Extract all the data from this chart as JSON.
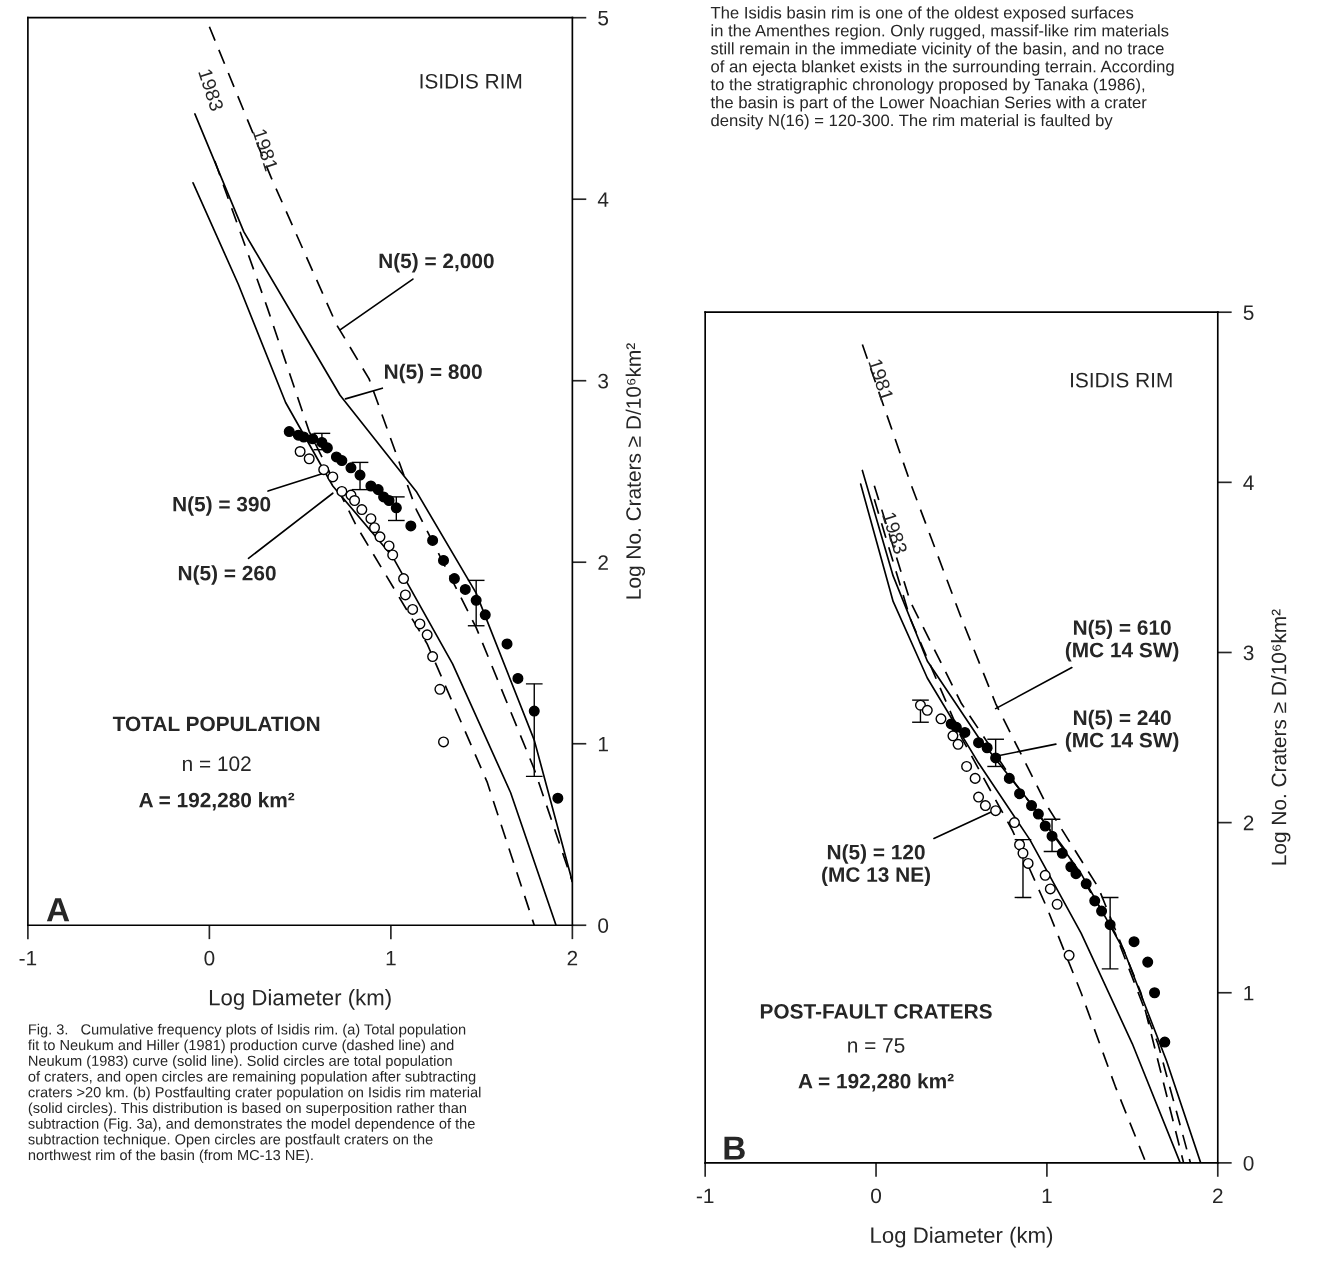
{
  "chart_data": [
    {
      "type": "scatter",
      "xlabel": "Log Diameter (km)",
      "ylabel": "Log No. Craters ≥ D/10⁶km²",
      "xlim": [
        -1,
        2
      ],
      "xticks": [
        -1,
        0,
        1,
        2
      ],
      "ylim": [
        0,
        5
      ],
      "yticks": [
        0,
        1,
        2,
        3,
        4,
        5
      ],
      "marker": "circle",
      "series": [
        {
          "color": "#000000",
          "x": [
            0.44,
            0.49,
            0.52,
            0.57,
            0.62,
            0.65,
            0.7,
            0.73,
            0.78,
            0.83,
            0.89,
            0.93,
            0.96,
            0.99,
            1.03,
            1.11,
            1.23,
            1.29,
            1.35,
            1.41,
            1.47,
            1.52,
            1.64,
            1.7,
            1.79,
            1.92
          ],
          "values": [
            2.72,
            2.7,
            2.69,
            2.68,
            2.66,
            2.63,
            2.58,
            2.56,
            2.52,
            2.48,
            2.42,
            2.4,
            2.36,
            2.34,
            2.3,
            2.2,
            2.12,
            2.01,
            1.91,
            1.85,
            1.79,
            1.71,
            1.55,
            1.36,
            1.18,
            0.7
          ],
          "errors": [
            null,
            null,
            null,
            null,
            [
              2.62,
              2.71
            ],
            null,
            null,
            null,
            null,
            [
              2.4,
              2.55
            ],
            null,
            null,
            null,
            null,
            [
              2.23,
              2.36
            ],
            null,
            null,
            null,
            null,
            null,
            [
              1.65,
              1.9
            ],
            null,
            null,
            null,
            [
              0.82,
              1.33
            ],
            null
          ]
        },
        {
          "color": "#ffffff",
          "x": [
            0.5,
            0.55,
            0.63,
            0.68,
            0.73,
            0.78,
            0.8,
            0.84,
            0.89,
            0.91,
            0.94,
            0.99,
            1.01,
            1.07,
            1.08,
            1.12,
            1.16,
            1.2,
            1.23,
            1.27,
            1.29
          ],
          "values": [
            2.61,
            2.57,
            2.51,
            2.47,
            2.39,
            2.37,
            2.34,
            2.29,
            2.24,
            2.19,
            2.14,
            2.09,
            2.04,
            1.91,
            1.82,
            1.74,
            1.66,
            1.6,
            1.48,
            1.3,
            1.01
          ]
        },
        {
          "type": "line",
          "color": "#000000",
          "line_style": "dashed",
          "marker": "none",
          "x": [
            0.0,
            0.34,
            0.7,
            0.88,
            1.14,
            1.47,
            1.79,
            2.0
          ],
          "values": [
            4.95,
            4.12,
            3.31,
            3.01,
            2.29,
            1.64,
            0.86,
            0.24
          ]
        },
        {
          "type": "line",
          "color": "#000000",
          "line_style": "solid",
          "marker": "none",
          "x": [
            -0.08,
            0.19,
            0.72,
            1.14,
            1.47,
            1.79,
            2.0
          ],
          "values": [
            4.47,
            3.82,
            2.92,
            2.39,
            1.83,
            1.02,
            0.24
          ]
        },
        {
          "type": "line",
          "color": "#000000",
          "line_style": "solid",
          "marker": "none",
          "x": [
            -0.09,
            0.16,
            0.42,
            0.68,
            1.01,
            1.34,
            1.66,
            1.91
          ],
          "values": [
            4.09,
            3.53,
            2.88,
            2.42,
            2.03,
            1.44,
            0.73,
            0.0
          ]
        },
        {
          "type": "line",
          "color": "#000000",
          "line_style": "dashed",
          "marker": "none",
          "x": [
            0.03,
            0.32,
            0.55,
            0.81,
            1.2,
            1.53,
            1.79
          ],
          "values": [
            4.21,
            3.4,
            2.72,
            2.2,
            1.55,
            0.79,
            0.0
          ]
        }
      ],
      "annotations": [
        "ISIDIS RIM",
        {
          "text": "N(5) = 2,000",
          "x": 0.72,
          "y": 3.28
        },
        {
          "text": "N(5) = 800",
          "x": 0.75,
          "y": 2.9
        },
        {
          "text": "N(5) = 390",
          "x": 0.66,
          "y": 2.5
        },
        {
          "text": "N(5) = 260",
          "x": 0.68,
          "y": 2.38
        },
        "1983",
        "1981",
        "TOTAL POPULATION",
        "n = 102",
        "A = 192,280 km²",
        "A",
        "Fig. 3.   Cumulative frequency plots of Isidis rim. (a) Total population\nfit to Neukum and Hiller (1981) production curve (dashed line) and\nNeukum (1983) curve (solid line). Solid circles are total population\nof craters, and open circles are remaining population after subtracting\ncraters >20 km. (b) Postfaulting crater population on Isidis rim material\n(solid circles). This distribution is based on superposition rather than\nsubtraction (Fig. 3a), and demonstrates the model dependence of the\nsubtraction technique. Open circles are postfault craters on the\nnorthwest rim of the basin (from MC-13 NE)."
      ]
    },
    {
      "type": "scatter",
      "xlabel": "Log Diameter (km)",
      "ylabel": "Log No. Craters ≥ D/10⁶km²",
      "xlim": [
        -1,
        2
      ],
      "xticks": [
        -1,
        0,
        1,
        2
      ],
      "ylim": [
        0,
        5
      ],
      "yticks": [
        0,
        1,
        2,
        3,
        4,
        5
      ],
      "marker": "circle",
      "series": [
        {
          "color": "#000000",
          "x": [
            0.44,
            0.47,
            0.52,
            0.6,
            0.65,
            0.7,
            0.78,
            0.84,
            0.91,
            0.95,
            0.99,
            1.03,
            1.09,
            1.14,
            1.17,
            1.23,
            1.28,
            1.32,
            1.37,
            1.51,
            1.59,
            1.63,
            1.69
          ],
          "values": [
            2.58,
            2.56,
            2.53,
            2.47,
            2.44,
            2.38,
            2.26,
            2.17,
            2.1,
            2.05,
            1.98,
            1.92,
            1.82,
            1.74,
            1.7,
            1.64,
            1.54,
            1.48,
            1.4,
            1.3,
            1.18,
            1.0,
            0.71
          ],
          "errors": [
            null,
            null,
            null,
            null,
            null,
            [
              2.33,
              2.49
            ],
            null,
            null,
            null,
            null,
            null,
            [
              1.83,
              2.02
            ],
            null,
            null,
            null,
            null,
            null,
            null,
            [
              1.14,
              1.56
            ],
            null,
            null,
            null,
            null
          ]
        },
        {
          "color": "#ffffff",
          "x": [
            0.26,
            0.3,
            0.38,
            0.45,
            0.48,
            0.53,
            0.58,
            0.6,
            0.64,
            0.7,
            0.81,
            0.84,
            0.86,
            0.89,
            0.99,
            1.02,
            1.06,
            1.13
          ],
          "values": [
            2.69,
            2.66,
            2.61,
            2.51,
            2.46,
            2.33,
            2.26,
            2.15,
            2.1,
            2.07,
            2.0,
            1.87,
            1.82,
            1.76,
            1.69,
            1.61,
            1.52,
            1.22
          ],
          "errors": [
            [
              2.59,
              2.72
            ],
            null,
            null,
            null,
            null,
            null,
            null,
            null,
            null,
            null,
            null,
            null,
            [
              1.56,
              1.9
            ],
            null,
            null,
            null,
            null,
            null
          ]
        },
        {
          "type": "line",
          "color": "#000000",
          "line_style": "dashed",
          "marker": "none",
          "x": [
            -0.08,
            0.2,
            0.5,
            0.7,
            1.0,
            1.3,
            1.55,
            1.8
          ],
          "values": [
            4.81,
            4.0,
            3.2,
            2.7,
            2.1,
            1.62,
            1.0,
            0.0
          ]
        },
        {
          "type": "line",
          "color": "#000000",
          "line_style": "solid",
          "marker": "none",
          "x": [
            -0.08,
            0.1,
            0.3,
            0.6,
            0.9,
            1.2,
            1.45,
            1.7,
            1.9
          ],
          "values": [
            4.07,
            3.45,
            2.95,
            2.5,
            2.12,
            1.7,
            1.25,
            0.6,
            0.0
          ]
        },
        {
          "type": "line",
          "color": "#000000",
          "line_style": "dashed",
          "marker": "none",
          "x": [
            -0.01,
            0.2,
            0.5,
            0.8,
            1.1,
            1.4,
            1.65,
            1.84
          ],
          "values": [
            3.98,
            3.3,
            2.7,
            2.25,
            1.85,
            1.35,
            0.7,
            0.0
          ]
        },
        {
          "type": "line",
          "color": "#000000",
          "line_style": "solid",
          "marker": "none",
          "x": [
            -0.09,
            0.1,
            0.3,
            0.6,
            0.9,
            1.2,
            1.5,
            1.78
          ],
          "values": [
            3.99,
            3.3,
            2.85,
            2.35,
            1.9,
            1.35,
            0.7,
            0.0
          ]
        },
        {
          "type": "line",
          "color": "#000000",
          "line_style": "dashed",
          "marker": "none",
          "x": [
            -0.01,
            0.2,
            0.5,
            0.8,
            1.0,
            1.2,
            1.4,
            1.58
          ],
          "values": [
            3.9,
            3.2,
            2.5,
            1.95,
            1.5,
            1.0,
            0.45,
            0.0
          ]
        }
      ],
      "annotations": [
        "ISIDIS RIM",
        {
          "text": "N(5) = 610\n(MC 14 SW)",
          "x": 0.7,
          "y": 2.67
        },
        {
          "text": "N(5) = 240\n(MC 14 SW)",
          "x": 0.7,
          "y": 2.39
        },
        {
          "text": "N(5) = 120\n(MC 13 NE)",
          "x": 0.69,
          "y": 2.07
        },
        "1981",
        "1983",
        "POST-FAULT CRATERS",
        "n = 75",
        "A = 192,280 km²",
        "B",
        "The Isidis basin rim is one of the oldest exposed surfaces\nin the Amenthes region. Only rugged, massif-like rim materials\nstill remain in the immediate vicinity of the basin, and no trace\nof an ejecta blanket exists in the surrounding terrain. According\nto the stratigraphic chronology proposed by Tanaka (1986),\nthe basin is part of the Lower Noachian Series with a crater\ndensity N(16) = 120-300. The rim material is faulted by"
      ]
    }
  ]
}
